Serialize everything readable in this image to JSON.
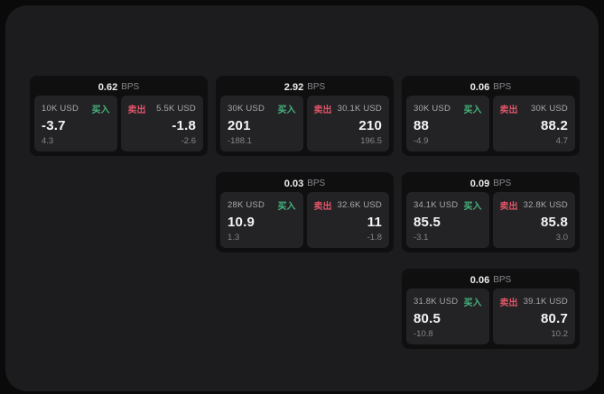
{
  "theme": {
    "outer_bg": "#0a0a0a",
    "panel_bg": "#1c1c1e",
    "card_bg": "#0f0f10",
    "tile_bg": "#232325",
    "text_header": "#ececee",
    "text_unit": "#88888d",
    "text_size": "#a9a9ad",
    "text_price": "#f4f4f5",
    "text_delta": "#85858a",
    "buy_color": "#46b47d",
    "sell_color": "#de5569"
  },
  "labels": {
    "bps_suffix": "BPS",
    "buy": "买入",
    "sell": "卖出"
  },
  "cards": [
    {
      "bps": "0.62",
      "row": 1,
      "col": 1,
      "buy": {
        "size": "10K USD",
        "price": "-3.7",
        "delta": "4.3"
      },
      "sell": {
        "size": "5.5K USD",
        "price": "-1.8",
        "delta": "-2.6"
      }
    },
    {
      "bps": "2.92",
      "row": 1,
      "col": 2,
      "buy": {
        "size": "30K USD",
        "price": "201",
        "delta": "-188.1"
      },
      "sell": {
        "size": "30.1K USD",
        "price": "210",
        "delta": "196.5"
      }
    },
    {
      "bps": "0.06",
      "row": 1,
      "col": 3,
      "buy": {
        "size": "30K USD",
        "price": "88",
        "delta": "-4.9"
      },
      "sell": {
        "size": "30K USD",
        "price": "88.2",
        "delta": "4.7"
      }
    },
    {
      "bps": "0.03",
      "row": 2,
      "col": 2,
      "buy": {
        "size": "28K USD",
        "price": "10.9",
        "delta": "1.3"
      },
      "sell": {
        "size": "32.6K USD",
        "price": "11",
        "delta": "-1.8"
      }
    },
    {
      "bps": "0.09",
      "row": 2,
      "col": 3,
      "buy": {
        "size": "34.1K USD",
        "price": "85.5",
        "delta": "-3.1"
      },
      "sell": {
        "size": "32.8K USD",
        "price": "85.8",
        "delta": "3.0"
      }
    },
    {
      "bps": "0.06",
      "row": 3,
      "col": 3,
      "buy": {
        "size": "31.8K USD",
        "price": "80.5",
        "delta": "-10.8"
      },
      "sell": {
        "size": "39.1K USD",
        "price": "80.7",
        "delta": "10.2"
      }
    }
  ]
}
